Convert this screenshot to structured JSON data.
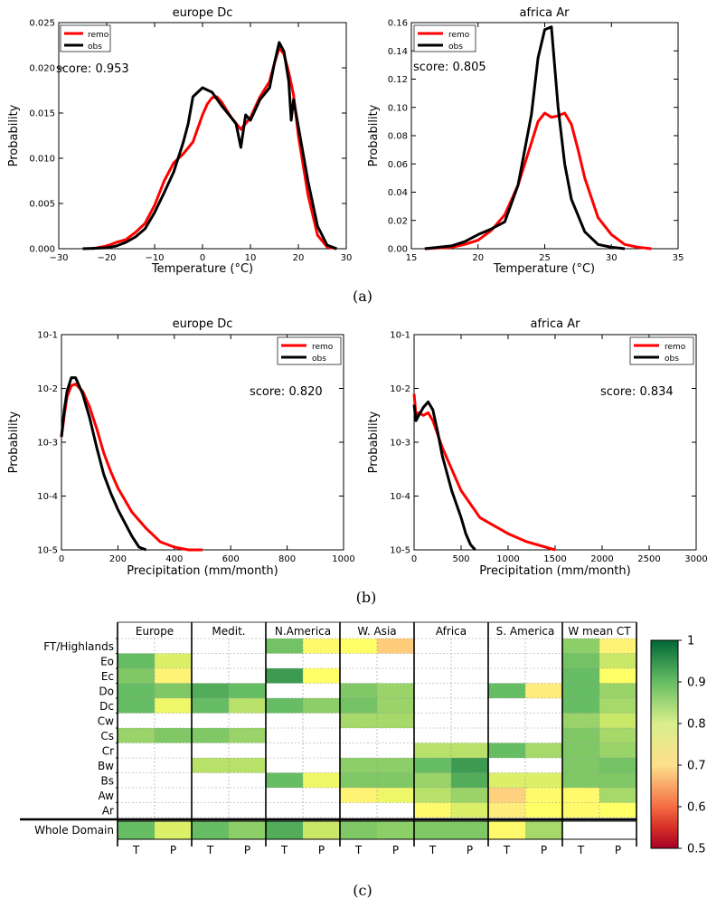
{
  "figure_labels": {
    "a": "(a)",
    "b": "(b)",
    "c": "(c)"
  },
  "colors": {
    "remo": "#ff0000",
    "obs": "#000000"
  },
  "chart_data": [
    {
      "type": "line",
      "title": "europe Dc",
      "xlabel": "Temperature (°C)",
      "ylabel": "Probability",
      "xlim": [
        -30,
        30
      ],
      "ylim": [
        0,
        0.025
      ],
      "xticks": [
        -30,
        -20,
        -10,
        0,
        10,
        20,
        30
      ],
      "xtick_labels": [
        "−30",
        "−20",
        "−10",
        "0",
        "10",
        "20",
        "30"
      ],
      "yticks": [
        0,
        0.005,
        0.01,
        0.015,
        0.02,
        0.025
      ],
      "ytick_labels": [
        "0.000",
        "0.005",
        "0.010",
        "0.015",
        "0.020",
        "0.025"
      ],
      "score": "score: 0.953",
      "legend": [
        "remo",
        "obs"
      ],
      "series": [
        {
          "name": "remo",
          "x": [
            -23,
            -20,
            -18,
            -16,
            -14,
            -12,
            -10,
            -8,
            -6,
            -4,
            -2,
            0,
            1,
            2,
            3,
            4,
            6,
            8,
            10,
            12,
            14,
            15,
            16,
            17,
            18,
            19,
            20,
            22,
            24,
            26,
            28
          ],
          "y": [
            0,
            0.0003,
            0.0007,
            0.001,
            0.0018,
            0.0028,
            0.0048,
            0.0075,
            0.0095,
            0.0105,
            0.0118,
            0.0148,
            0.016,
            0.0167,
            0.0168,
            0.0162,
            0.0145,
            0.0132,
            0.0145,
            0.0168,
            0.0185,
            0.0205,
            0.0222,
            0.0215,
            0.0195,
            0.017,
            0.0125,
            0.006,
            0.0015,
            0.0002,
            0
          ]
        },
        {
          "name": "obs",
          "x": [
            -25,
            -20,
            -18,
            -16,
            -14,
            -12,
            -10,
            -8,
            -6,
            -4,
            -3,
            -2,
            -1,
            0,
            2,
            4,
            6,
            7,
            8,
            9,
            10,
            12,
            14,
            15,
            16,
            17,
            18,
            18.5,
            19,
            20,
            22,
            24,
            26,
            28
          ],
          "y": [
            0,
            0.0001,
            0.0003,
            0.0007,
            0.0013,
            0.0022,
            0.004,
            0.0062,
            0.0085,
            0.0118,
            0.0138,
            0.0168,
            0.0173,
            0.0178,
            0.0173,
            0.0158,
            0.0145,
            0.0138,
            0.0112,
            0.0148,
            0.0142,
            0.0165,
            0.0178,
            0.0205,
            0.0228,
            0.0218,
            0.0185,
            0.0142,
            0.0165,
            0.0135,
            0.0075,
            0.0025,
            0.0004,
            0
          ]
        }
      ]
    },
    {
      "type": "line",
      "title": "africa Ar",
      "xlabel": "Temperature (°C)",
      "ylabel": "Probability",
      "xlim": [
        15,
        35
      ],
      "ylim": [
        0,
        0.16
      ],
      "xticks": [
        15,
        20,
        25,
        30,
        35
      ],
      "xtick_labels": [
        "15",
        "20",
        "25",
        "30",
        "35"
      ],
      "yticks": [
        0,
        0.02,
        0.04,
        0.06,
        0.08,
        0.1,
        0.12,
        0.14,
        0.16
      ],
      "ytick_labels": [
        "0.00",
        "0.02",
        "0.04",
        "0.06",
        "0.08",
        "0.10",
        "0.12",
        "0.14",
        "0.16"
      ],
      "score": "score: 0.805",
      "legend": [
        "remo",
        "obs"
      ],
      "series": [
        {
          "name": "remo",
          "x": [
            16,
            18,
            19,
            20,
            21,
            22,
            23,
            24,
            24.5,
            25,
            25.5,
            26,
            26.5,
            27,
            27.5,
            28,
            29,
            30,
            31,
            32,
            33
          ],
          "y": [
            0,
            0.001,
            0.003,
            0.006,
            0.013,
            0.024,
            0.045,
            0.075,
            0.09,
            0.096,
            0.093,
            0.094,
            0.096,
            0.088,
            0.07,
            0.05,
            0.022,
            0.01,
            0.003,
            0.001,
            0
          ]
        },
        {
          "name": "obs",
          "x": [
            16,
            18,
            19,
            20,
            21,
            22,
            23,
            24,
            24.5,
            25,
            25.5,
            26,
            26.5,
            27,
            28,
            29,
            30,
            31
          ],
          "y": [
            0,
            0.002,
            0.005,
            0.01,
            0.014,
            0.019,
            0.045,
            0.095,
            0.135,
            0.155,
            0.157,
            0.1,
            0.06,
            0.035,
            0.012,
            0.003,
            0.001,
            0
          ]
        }
      ]
    },
    {
      "type": "line",
      "title": "europe Dc",
      "xlabel": "Precipitation (mm/month)",
      "ylabel": "Probability",
      "yscale": "log",
      "xlim": [
        0,
        1000
      ],
      "ylim": [
        -5,
        -1
      ],
      "xticks": [
        0,
        200,
        400,
        600,
        800,
        1000
      ],
      "xtick_labels": [
        "0",
        "200",
        "400",
        "600",
        "800",
        "1000"
      ],
      "yticks": [
        -5,
        -4,
        -3,
        -2,
        -1
      ],
      "ytick_labels": [
        "10-5",
        "10-4",
        "10-3",
        "10-2",
        "10-1"
      ],
      "score": "score: 0.820",
      "legend": [
        "remo",
        "obs"
      ],
      "series": [
        {
          "name": "remo",
          "x": [
            0,
            10,
            20,
            35,
            50,
            75,
            100,
            125,
            150,
            175,
            200,
            250,
            300,
            350,
            400,
            450,
            500
          ],
          "y": [
            -2.9,
            -2.5,
            -2.15,
            -1.95,
            -1.92,
            -2.05,
            -2.35,
            -2.75,
            -3.2,
            -3.55,
            -3.85,
            -4.3,
            -4.6,
            -4.85,
            -4.95,
            -5,
            -5
          ]
        },
        {
          "name": "obs",
          "x": [
            0,
            10,
            20,
            35,
            50,
            75,
            100,
            125,
            150,
            175,
            200,
            225,
            250,
            275,
            300
          ],
          "y": [
            -2.9,
            -2.4,
            -2.05,
            -1.8,
            -1.8,
            -2.1,
            -2.55,
            -3.1,
            -3.6,
            -3.95,
            -4.25,
            -4.5,
            -4.75,
            -4.95,
            -5
          ]
        }
      ]
    },
    {
      "type": "line",
      "title": "africa Ar",
      "xlabel": "Precipitation (mm/month)",
      "ylabel": "Probability",
      "yscale": "log",
      "xlim": [
        0,
        3000
      ],
      "ylim": [
        -5,
        -1
      ],
      "xticks": [
        0,
        500,
        1000,
        1500,
        2000,
        2500,
        3000
      ],
      "xtick_labels": [
        "0",
        "500",
        "1000",
        "1500",
        "2000",
        "2500",
        "3000"
      ],
      "yticks": [
        -5,
        -4,
        -3,
        -2,
        -1
      ],
      "ytick_labels": [
        "10-5",
        "10-4",
        "10-3",
        "10-2",
        "10-1"
      ],
      "score": "score: 0.834",
      "legend": [
        "remo",
        "obs"
      ],
      "series": [
        {
          "name": "remo",
          "x": [
            0,
            20,
            50,
            100,
            150,
            200,
            300,
            400,
            500,
            600,
            700,
            800,
            1000,
            1200,
            1500
          ],
          "y": [
            -2.1,
            -2.5,
            -2.45,
            -2.5,
            -2.45,
            -2.6,
            -3.1,
            -3.5,
            -3.9,
            -4.15,
            -4.4,
            -4.5,
            -4.7,
            -4.85,
            -5
          ]
        },
        {
          "name": "obs",
          "x": [
            0,
            20,
            50,
            100,
            150,
            200,
            250,
            300,
            400,
            500,
            550,
            600,
            650
          ],
          "y": [
            -2.3,
            -2.6,
            -2.5,
            -2.35,
            -2.25,
            -2.4,
            -2.8,
            -3.25,
            -3.9,
            -4.4,
            -4.7,
            -4.9,
            -5
          ]
        }
      ]
    },
    {
      "type": "heatmap",
      "rows": [
        "FT/Highlands",
        "Eo",
        "Ec",
        "Do",
        "Dc",
        "Cw",
        "Cs",
        "Cr",
        "Bw",
        "Bs",
        "Aw",
        "Ar"
      ],
      "summary_row": "Whole Domain",
      "groups": [
        "Europe",
        "Medit.",
        "N.America",
        "W. Asia",
        "Africa",
        "S. America",
        "W  mean  CT"
      ],
      "subcolumns": [
        "T",
        "P"
      ],
      "colorbar": {
        "min": 0.5,
        "max": 1,
        "ticks": [
          0.5,
          0.6,
          0.7,
          0.8,
          0.9,
          1
        ],
        "tick_labels": [
          "0.5",
          "0.6",
          "0.7",
          "0.8",
          "0.9",
          "1"
        ]
      },
      "values": [
        [
          null,
          null,
          null,
          null,
          0.94,
          0.84,
          0.85,
          0.76,
          null,
          null,
          null,
          null,
          0.92,
          0.83
        ],
        [
          0.95,
          0.87,
          null,
          null,
          null,
          null,
          null,
          null,
          null,
          null,
          null,
          null,
          0.94,
          0.88
        ],
        [
          0.93,
          0.83,
          null,
          null,
          0.97,
          0.85,
          null,
          null,
          null,
          null,
          null,
          null,
          0.95,
          0.85
        ],
        [
          0.95,
          0.93,
          0.96,
          0.95,
          null,
          null,
          0.93,
          0.91,
          null,
          null,
          0.95,
          0.82,
          0.95,
          0.91
        ],
        [
          0.95,
          0.86,
          0.95,
          0.89,
          0.95,
          0.92,
          0.94,
          0.91,
          null,
          null,
          null,
          null,
          0.95,
          0.9
        ],
        [
          null,
          null,
          null,
          null,
          null,
          null,
          0.9,
          0.9,
          null,
          null,
          null,
          null,
          0.91,
          0.88
        ],
        [
          0.91,
          0.93,
          0.93,
          0.91,
          null,
          null,
          null,
          null,
          null,
          null,
          null,
          null,
          0.93,
          0.9
        ],
        [
          null,
          null,
          null,
          null,
          null,
          null,
          null,
          null,
          0.89,
          0.89,
          0.95,
          0.9,
          0.93,
          0.91
        ],
        [
          null,
          null,
          0.89,
          0.89,
          null,
          null,
          0.92,
          0.92,
          0.95,
          0.97,
          null,
          null,
          0.93,
          0.94
        ],
        [
          null,
          null,
          null,
          null,
          0.95,
          0.86,
          0.93,
          0.93,
          0.91,
          0.96,
          0.87,
          0.87,
          0.93,
          0.93
        ],
        [
          null,
          null,
          null,
          null,
          null,
          null,
          0.83,
          0.86,
          0.89,
          0.91,
          0.77,
          0.84,
          0.84,
          0.9
        ],
        [
          null,
          null,
          null,
          null,
          null,
          null,
          null,
          null,
          0.84,
          0.87,
          0.82,
          0.85,
          0.84,
          0.85
        ]
      ],
      "summary_values": [
        0.95,
        0.87,
        0.95,
        0.92,
        0.96,
        0.88,
        0.93,
        0.92,
        0.93,
        0.93,
        0.84,
        0.9,
        null,
        null
      ]
    }
  ]
}
